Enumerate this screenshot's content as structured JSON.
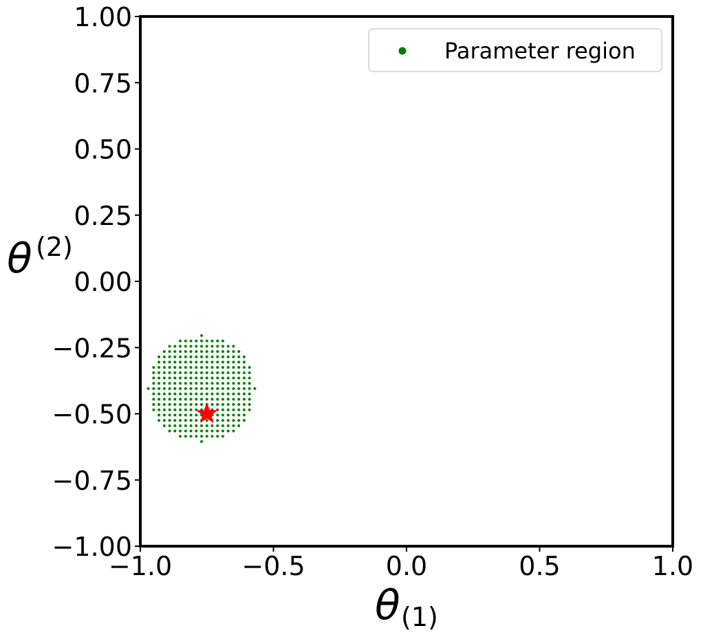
{
  "chart_data": {
    "type": "scatter",
    "xlabel": "θ",
    "xlabel_sub": "(1)",
    "ylabel": "θ",
    "ylabel_sup": "(2)",
    "xlim": [
      -1.0,
      1.0
    ],
    "ylim": [
      -1.0,
      1.0
    ],
    "x_ticks": [
      -1.0,
      -0.5,
      0.0,
      0.5,
      1.0
    ],
    "x_tick_labels": [
      "−1.0",
      "−0.5",
      "0.0",
      "0.5",
      "1.0"
    ],
    "y_ticks": [
      1.0,
      0.75,
      0.5,
      0.25,
      0.0,
      -0.25,
      -0.5,
      -0.75,
      -1.0
    ],
    "y_tick_labels": [
      "1.00",
      "0.75",
      "0.50",
      "0.25",
      "0.00",
      "−0.25",
      "−0.50",
      "−0.75",
      "−1.00"
    ],
    "grid": false,
    "legend_position": "top-right",
    "series": [
      {
        "name": "Parameter region",
        "marker": "dot",
        "color": "#008000",
        "region": {
          "center": [
            -0.77,
            -0.405
          ],
          "radius": 0.2,
          "spacing": 0.02
        }
      }
    ],
    "highlight_point": {
      "x": -0.75,
      "y": -0.5,
      "marker": "star",
      "color": "#ff0000"
    }
  }
}
